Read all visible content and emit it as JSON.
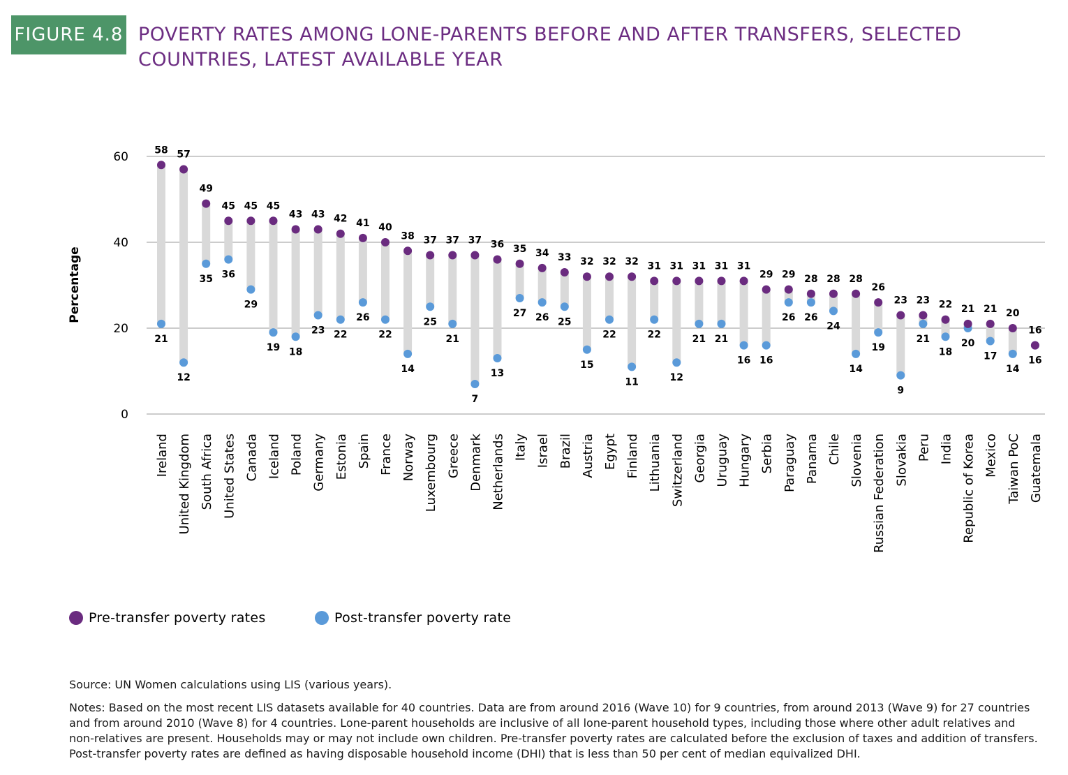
{
  "figure_label": "FIGURE 4.8",
  "title": "POVERTY RATES AMONG LONE-PARENTS BEFORE AND AFTER TRANSFERS, SELECTED COUNTRIES, LATEST AVAILABLE YEAR",
  "colors": {
    "badge": "#4d9568",
    "title": "#6c2d82",
    "pre": "#6a2b7f",
    "post": "#5a9ad9",
    "range_bar": "#d9d9d9",
    "grid": "#9a9a9a"
  },
  "legend": {
    "pre_label": "Pre-transfer poverty rates",
    "post_label": "Post-transfer poverty rate"
  },
  "source": "Source: UN Women calculations using LIS (various years).",
  "notes": "Notes: Based on the most recent LIS datasets available for 40 countries. Data are from around 2016 (Wave 10) for 9 countries, from around 2013 (Wave 9) for 27 countries and from around 2010 (Wave 8) for 4 countries. Lone-parent households are inclusive of all lone-parent household types, including those where other adult relatives and non-relatives are present. Households may or may not include own children. Pre-transfer poverty rates are calculated before the exclusion of taxes and addition of transfers. Post-transfer poverty rates are defined as having disposable household income (DHI) that is less than 50 per cent of median equivalized DHI.",
  "chart_data": {
    "type": "scatter",
    "ylabel": "Percentage",
    "ylim": [
      0,
      60
    ],
    "yticks": [
      0,
      20,
      40,
      60
    ],
    "grid": true,
    "legend_position": "bottom-left",
    "categories": [
      "Ireland",
      "United Kingdom",
      "South Africa",
      "United States",
      "Canada",
      "Iceland",
      "Poland",
      "Germany",
      "Estonia",
      "Spain",
      "France",
      "Norway",
      "Luxembourg",
      "Greece",
      "Denmark",
      "Netherlands",
      "Italy",
      "Israel",
      "Brazil",
      "Austria",
      "Egypt",
      "Finland",
      "Lithuania",
      "Switzerland",
      "Georgia",
      "Uruguay",
      "Hungary",
      "Serbia",
      "Paraguay",
      "Panama",
      "Chile",
      "Slovenia",
      "Russian Federation",
      "Slovakia",
      "Peru",
      "India",
      "Republic of Korea",
      "Mexico",
      "Taiwan PoC",
      "Guatemala"
    ],
    "series": [
      {
        "name": "Pre-transfer poverty rates",
        "values": [
          58,
          57,
          49,
          45,
          45,
          45,
          43,
          43,
          42,
          41,
          40,
          38,
          37,
          37,
          37,
          36,
          35,
          34,
          33,
          32,
          32,
          32,
          31,
          31,
          31,
          31,
          31,
          29,
          29,
          28,
          28,
          28,
          26,
          23,
          23,
          22,
          21,
          21,
          20,
          16
        ]
      },
      {
        "name": "Post-transfer poverty rate",
        "values": [
          21,
          12,
          35,
          36,
          29,
          19,
          18,
          23,
          22,
          26,
          22,
          14,
          25,
          21,
          7,
          13,
          27,
          26,
          25,
          15,
          22,
          11,
          22,
          12,
          21,
          21,
          16,
          16,
          26,
          26,
          24,
          14,
          19,
          9,
          21,
          18,
          20,
          17,
          14,
          16
        ]
      }
    ]
  }
}
